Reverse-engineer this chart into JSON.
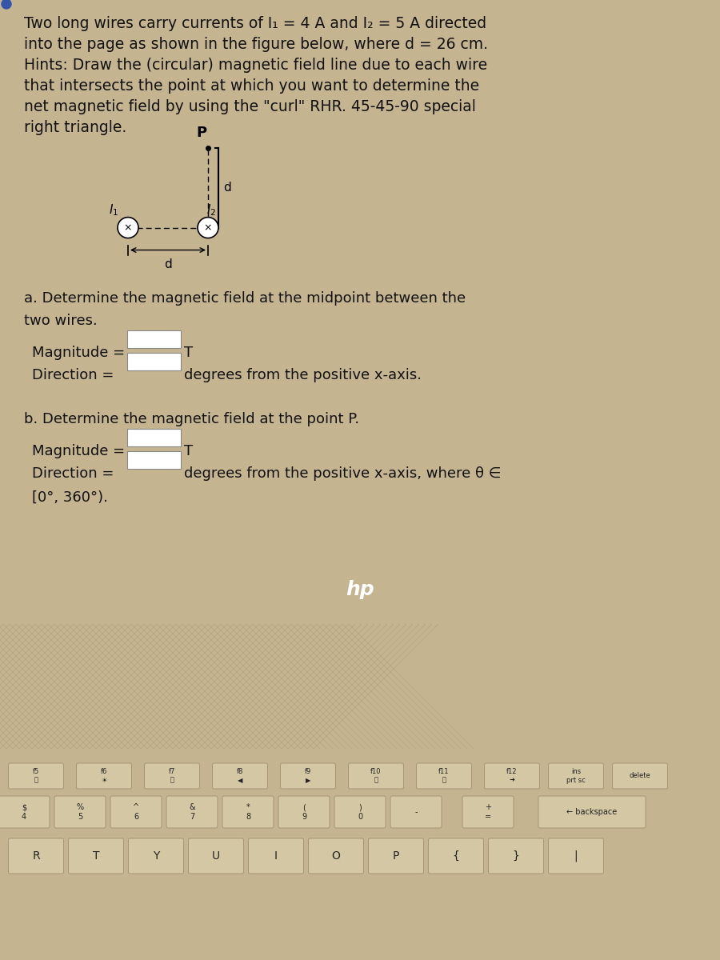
{
  "text_color": "#111111",
  "screen_bg": "#e8e4dc",
  "content_bg": "#ddd8d0",
  "black_bar": "#1a1a1a",
  "keyboard_bg": "#c4b490",
  "key_color": "#d8c8a8",
  "key_edge": "#a09070",
  "font_size_title": 13.5,
  "font_size_body": 13,
  "font_size_fig": 11,
  "title_lines": [
    "Two long wires carry currents of I₁ = 4 A and I₂ = 5 A directed",
    "into the page as shown in the figure below, where d = 26 cm.",
    "Hints: Draw the (circular) magnetic field line due to each wire",
    "that intersects the point at which you want to determine the",
    "net magnetic field by using the \"curl\" RHR. 45-45-90 special",
    "right triangle."
  ],
  "part_a": "a. Determine the magnetic field at the midpoint between the",
  "part_a2": "two wires.",
  "magnitude_lbl": "Magnitude =",
  "direction_lbl": "Direction =",
  "unit_T": "T",
  "dir_unit_a": "degrees from the positive x-axis.",
  "part_b": "b. Determine the magnetic field at the point P.",
  "dir_unit_b": "degrees from the positive x-axis, where θ ∈",
  "range_lbl": "[0°, 360°).",
  "hp_label": "hp"
}
